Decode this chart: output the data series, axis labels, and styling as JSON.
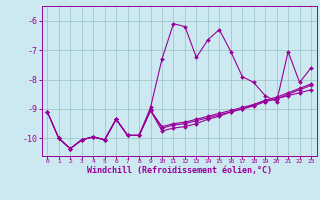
{
  "background_color": "#cce8f0",
  "grid_color": "#a0c8c8",
  "line_color": "#990099",
  "marker_color": "#990099",
  "xlabel": "Windchill (Refroidissement éolien,°C)",
  "xlabel_color": "#990099",
  "tick_color": "#990099",
  "ylim": [
    -10.6,
    -5.5
  ],
  "xlim": [
    -0.5,
    23.5
  ],
  "yticks": [
    -10,
    -9,
    -8,
    -7,
    -6
  ],
  "xticks": [
    0,
    1,
    2,
    3,
    4,
    5,
    6,
    7,
    8,
    9,
    10,
    11,
    12,
    13,
    14,
    15,
    16,
    17,
    18,
    19,
    20,
    21,
    22,
    23
  ],
  "series": [
    [
      null,
      -10.0,
      -10.35,
      -10.05,
      -9.95,
      -10.05,
      -9.35,
      -9.9,
      -9.9,
      -9.05,
      null,
      null,
      null,
      null,
      null,
      null,
      null,
      null,
      null,
      null,
      null,
      null,
      null,
      null
    ],
    [
      null,
      null,
      null,
      null,
      null,
      null,
      null,
      -9.9,
      -9.9,
      -8.95,
      -7.3,
      -6.1,
      -6.2,
      -7.25,
      -6.65,
      -6.3,
      -7.05,
      -7.9,
      -8.1,
      -8.55,
      -8.75,
      -7.05,
      -8.1,
      -7.6
    ],
    [
      -9.1,
      -10.0,
      -10.35,
      -10.05,
      -9.95,
      -10.05,
      -9.35,
      -9.9,
      -9.9,
      -9.05,
      -9.75,
      -9.65,
      -9.6,
      -9.5,
      -9.35,
      -9.25,
      -9.1,
      -9.0,
      -8.85,
      -8.7,
      -8.6,
      -8.45,
      -8.3,
      -8.15
    ],
    [
      -9.1,
      -10.0,
      -10.35,
      -10.05,
      -9.95,
      -10.05,
      -9.35,
      -9.9,
      -9.9,
      -9.05,
      -9.65,
      -9.55,
      -9.5,
      -9.4,
      -9.3,
      -9.2,
      -9.1,
      -9.0,
      -8.9,
      -8.75,
      -8.65,
      -8.5,
      -8.35,
      -8.2
    ],
    [
      -9.1,
      -10.0,
      -10.35,
      -10.05,
      -9.95,
      -10.05,
      -9.35,
      -9.9,
      -9.9,
      -9.05,
      -9.6,
      -9.5,
      -9.45,
      -9.35,
      -9.25,
      -9.15,
      -9.05,
      -8.95,
      -8.85,
      -8.75,
      -8.65,
      -8.55,
      -8.45,
      -8.35
    ]
  ]
}
